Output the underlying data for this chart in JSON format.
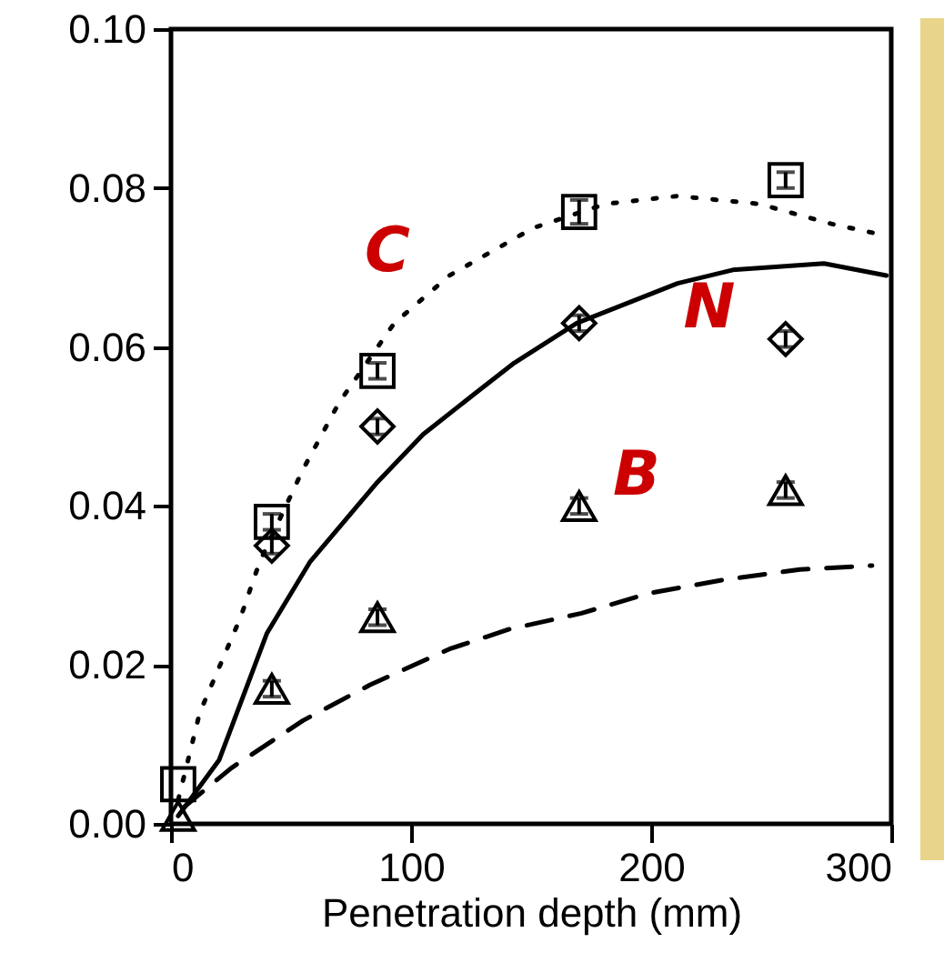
{
  "chart_data": {
    "type": "scatter",
    "xlabel": "Penetration depth (mm)",
    "xlim": [
      0,
      300
    ],
    "ylim": [
      0,
      0.1
    ],
    "xticks": [
      0,
      100,
      200,
      300
    ],
    "yticks": [
      {
        "value": 0,
        "label": "0.00"
      },
      {
        "value": 0.02,
        "label": "0.02"
      },
      {
        "value": 0.04,
        "label": "0.04"
      },
      {
        "value": 0.06,
        "label": "0.06"
      },
      {
        "value": 0.08,
        "label": "0.08"
      },
      {
        "value": 0.1,
        "label": "0.10"
      }
    ],
    "grid": false,
    "series": [
      {
        "marker": "square",
        "color": "#000000",
        "x": [
          3,
          42,
          86,
          170,
          256
        ],
        "values": [
          0.005,
          0.038,
          0.057,
          0.077,
          0.081
        ],
        "errors": [
          null,
          0.001,
          0.001,
          0.0015,
          0.001
        ]
      },
      {
        "marker": "diamond",
        "color": "#000000",
        "x": [
          42,
          86,
          170,
          256
        ],
        "values": [
          0.035,
          0.05,
          0.063,
          0.061
        ],
        "errors": [
          0.001,
          0.001,
          0.001,
          0.001
        ]
      },
      {
        "marker": "triangle",
        "color": "#000000",
        "x": [
          3,
          42,
          86,
          170,
          256
        ],
        "values": [
          0.001,
          0.017,
          0.026,
          0.04,
          0.042
        ],
        "errors": [
          null,
          0.001,
          0.001,
          0.001,
          0.001
        ]
      },
      {
        "type": "line",
        "line_style": "dotted",
        "color": "#000000",
        "x": [
          3,
          12,
          29,
          37,
          55,
          70,
          93,
          116,
          151,
          181,
          211,
          245,
          275,
          298
        ],
        "values": [
          0.003,
          0.014,
          0.026,
          0.033,
          0.0446,
          0.053,
          0.063,
          0.069,
          0.075,
          0.078,
          0.079,
          0.078,
          0.0755,
          0.074
        ]
      },
      {
        "type": "line",
        "line_style": "solid",
        "color": "#000000",
        "x": [
          3,
          20,
          40,
          58,
          86,
          105,
          126,
          143,
          169,
          211,
          234,
          272,
          298
        ],
        "values": [
          0.001,
          0.008,
          0.024,
          0.033,
          0.043,
          0.049,
          0.054,
          0.058,
          0.063,
          0.068,
          0.0697,
          0.0705,
          0.069
        ]
      },
      {
        "type": "line",
        "line_style": "dashed",
        "color": "#000000",
        "x": [
          5,
          25,
          55,
          83,
          116,
          141,
          171,
          199,
          230,
          262,
          292
        ],
        "values": [
          0.002,
          0.007,
          0.013,
          0.0175,
          0.022,
          0.0245,
          0.0265,
          0.029,
          0.0307,
          0.032,
          0.0325
        ]
      }
    ],
    "annotations": [
      "C",
      "N",
      "B"
    ]
  }
}
